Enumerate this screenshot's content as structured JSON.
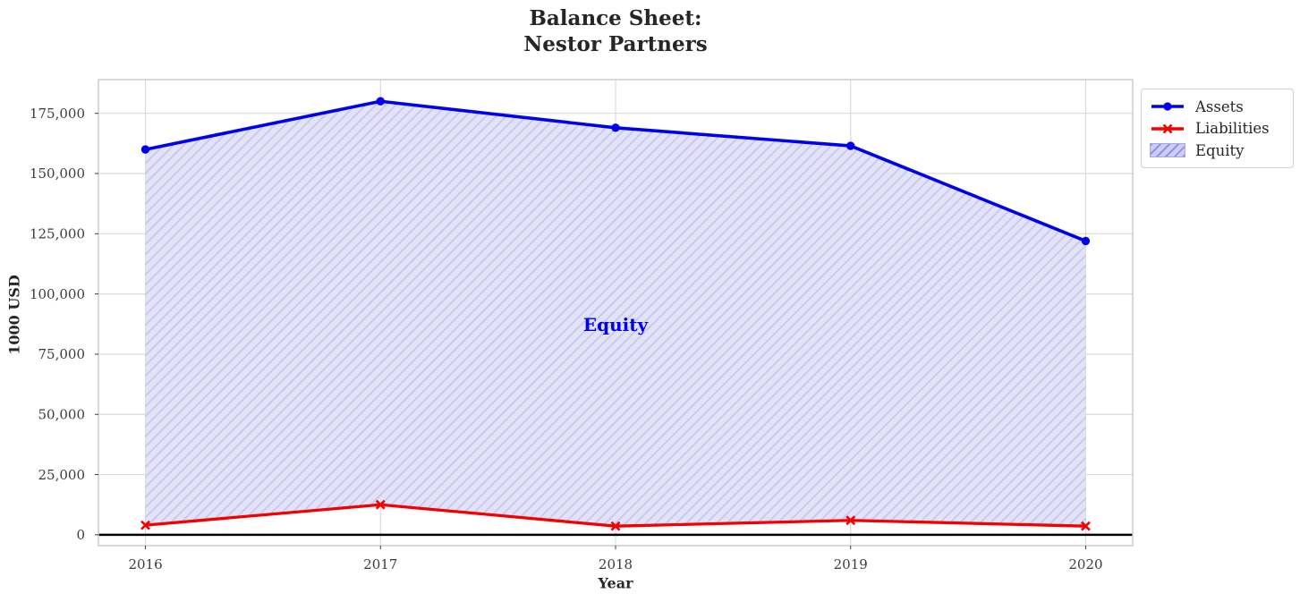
{
  "figure": {
    "title_line1": "Balance Sheet:",
    "title_line2": "Nestor Partners",
    "x_axis_label": "Year",
    "y_axis_label": "1000 USD",
    "equity_annotation": "Equity"
  },
  "legend": {
    "items": [
      {
        "label": "Assets",
        "marker": "line-circle"
      },
      {
        "label": "Liabilities",
        "marker": "line-x"
      },
      {
        "label": "Equity",
        "marker": "hatched-patch"
      }
    ]
  },
  "chart_data": {
    "type": "line",
    "title": "Balance Sheet: Nestor Partners",
    "xlabel": "Year",
    "ylabel": "1000 USD",
    "x": [
      2016,
      2017,
      2018,
      2019,
      2020
    ],
    "x_tick_labels": [
      "2016",
      "2017",
      "2018",
      "2019",
      "2020"
    ],
    "series": [
      {
        "name": "Assets",
        "marker": "circle",
        "values": [
          160000,
          180000,
          169000,
          161500,
          122000
        ]
      },
      {
        "name": "Liabilities",
        "marker": "x",
        "values": [
          4000,
          12500,
          3600,
          6000,
          3600
        ]
      }
    ],
    "fill_between": {
      "name": "Equity",
      "upper": "Assets",
      "lower": "Liabilities",
      "hatch": "//",
      "label_x": 2018,
      "label_y": 87000
    },
    "xlim": [
      2015.8,
      2020.2
    ],
    "ylim": [
      -4500,
      189000
    ],
    "yticks": [
      0,
      25000,
      50000,
      75000,
      100000,
      125000,
      150000,
      175000
    ],
    "ytick_labels": [
      "0",
      "25,000",
      "50,000",
      "75,000",
      "100,000",
      "125,000",
      "150,000",
      "175,000"
    ],
    "grid": true,
    "zero_line": true,
    "legend_position": "outside upper right"
  },
  "colors": {
    "assets": "#0000f0",
    "liabilities": "#f40000",
    "grid": "#d9d9d9",
    "spine": "#c8c8c8",
    "text": "#262626",
    "tick_text": "#3c3c3c",
    "equity_face": "#e3e3f8",
    "equity_hatch": "#c5c5ef",
    "legend_swatch_face": "#ccccf4",
    "legend_swatch_hatch": "#9292e3",
    "legend_swatch_border": "#a6a6e8",
    "legend_border": "#cfcfcf",
    "zero_line": "#000000"
  }
}
